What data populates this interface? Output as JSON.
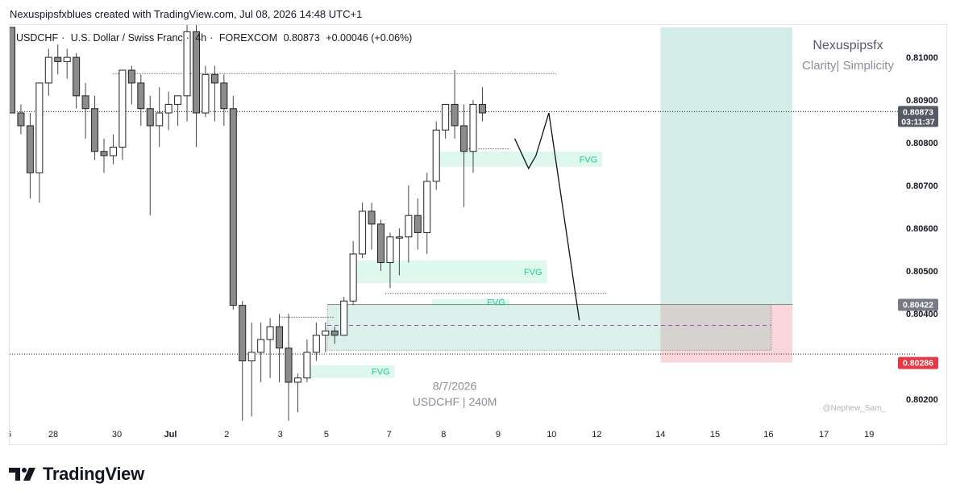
{
  "header": {
    "created_by": "Nexuspipsfxblues created with TradingView.com, Jul 08, 2026 14:48 UTC+1"
  },
  "symbol": {
    "ticker": "USDCHF",
    "name": "U.S. Dollar / Swiss Franc",
    "interval": "4h",
    "exchange": "FOREXCOM",
    "last": "0.80873",
    "change": "+0.00046 (+0.06%)"
  },
  "author": {
    "name": "Nexuspipsfx",
    "tagline": "Clarity| Simplicity"
  },
  "chart_data": {
    "type": "candlestick",
    "symbol": "USDCHF",
    "ylim": [
      0.8014,
      0.8107
    ],
    "yticks": [
      "0.81000",
      "0.80900",
      "0.80800",
      "0.80700",
      "0.80600",
      "0.80500",
      "0.80400",
      "0.80200"
    ],
    "xticks": [
      {
        "label": "6",
        "bar": -0.3
      },
      {
        "label": "28",
        "bar": 4.5
      },
      {
        "label": "30",
        "bar": 11.4
      },
      {
        "label": "Jul",
        "bar": 17.2
      },
      {
        "label": "2",
        "bar": 23.3
      },
      {
        "label": "3",
        "bar": 29.1
      },
      {
        "label": "5",
        "bar": 34.1
      },
      {
        "label": "7",
        "bar": 40.9
      },
      {
        "label": "8",
        "bar": 46.8
      },
      {
        "label": "9",
        "bar": 52.7
      },
      {
        "label": "10",
        "bar": 58.5
      },
      {
        "label": "12",
        "bar": 63.4
      },
      {
        "label": "14",
        "bar": 70.3
      },
      {
        "label": "15",
        "bar": 76.2
      },
      {
        "label": "16",
        "bar": 82.0
      },
      {
        "label": "17",
        "bar": 88.0
      },
      {
        "label": "19",
        "bar": 92.9
      }
    ],
    "candles": [
      [
        0.8107,
        0.8107,
        0.8087,
        0.8087
      ],
      [
        0.8087,
        0.8089,
        0.8082,
        0.8084
      ],
      [
        0.8084,
        0.8087,
        0.8067,
        0.8073
      ],
      [
        0.8073,
        0.8094,
        0.8066,
        0.8094
      ],
      [
        0.8094,
        0.8102,
        0.8091,
        0.81
      ],
      [
        0.81,
        0.8103,
        0.8096,
        0.8099
      ],
      [
        0.8099,
        0.8102,
        0.8095,
        0.81
      ],
      [
        0.81,
        0.8101,
        0.8088,
        0.8091
      ],
      [
        0.8091,
        0.8094,
        0.8081,
        0.8088
      ],
      [
        0.8088,
        0.8091,
        0.8076,
        0.8078
      ],
      [
        0.8078,
        0.8081,
        0.8073,
        0.8077
      ],
      [
        0.8077,
        0.8082,
        0.8075,
        0.8079
      ],
      [
        0.8079,
        0.8097,
        0.8076,
        0.8097
      ],
      [
        0.8097,
        0.8098,
        0.8089,
        0.8094
      ],
      [
        0.8094,
        0.8096,
        0.8084,
        0.8088
      ],
      [
        0.8088,
        0.8091,
        0.8063,
        0.8084
      ],
      [
        0.8084,
        0.8093,
        0.8079,
        0.8087
      ],
      [
        0.8087,
        0.8092,
        0.8083,
        0.8089
      ],
      [
        0.8089,
        0.8091,
        0.8084,
        0.8091
      ],
      [
        0.8091,
        0.8112,
        0.8085,
        0.8106
      ],
      [
        0.8106,
        0.811,
        0.8079,
        0.8087
      ],
      [
        0.8087,
        0.8098,
        0.8086,
        0.8096
      ],
      [
        0.8096,
        0.8098,
        0.8085,
        0.8094
      ],
      [
        0.8094,
        0.8096,
        0.8084,
        0.8088
      ],
      [
        0.8088,
        0.8091,
        0.8041,
        0.8042
      ],
      [
        0.8042,
        0.8043,
        0.8015,
        0.8029
      ],
      [
        0.8029,
        0.8038,
        0.8016,
        0.8031
      ],
      [
        0.8031,
        0.8038,
        0.8024,
        0.8034
      ],
      [
        0.8034,
        0.8039,
        0.8025,
        0.8037
      ],
      [
        0.8037,
        0.804,
        0.8024,
        0.8032
      ],
      [
        0.8032,
        0.804,
        0.8015,
        0.8024
      ],
      [
        0.8024,
        0.8026,
        0.8017,
        0.8025
      ],
      [
        0.8025,
        0.8034,
        0.8024,
        0.8031
      ],
      [
        0.8031,
        0.8038,
        0.8029,
        0.8035
      ],
      [
        0.8035,
        0.8038,
        0.8031,
        0.8036
      ],
      [
        0.8036,
        0.8037,
        0.8033,
        0.8035
      ],
      [
        0.8035,
        0.8044,
        0.8035,
        0.8043
      ],
      [
        0.8043,
        0.8057,
        0.8042,
        0.8054
      ],
      [
        0.8054,
        0.8066,
        0.8053,
        0.8064
      ],
      [
        0.8064,
        0.8066,
        0.8055,
        0.8061
      ],
      [
        0.8061,
        0.8062,
        0.805,
        0.8052
      ],
      [
        0.8052,
        0.8059,
        0.8046,
        0.8058
      ],
      [
        0.8058,
        0.806,
        0.8049,
        0.8058
      ],
      [
        0.8058,
        0.807,
        0.8052,
        0.8063
      ],
      [
        0.8063,
        0.8067,
        0.8055,
        0.8059
      ],
      [
        0.8059,
        0.8073,
        0.8054,
        0.8071
      ],
      [
        0.8071,
        0.8085,
        0.8069,
        0.8083
      ],
      [
        0.8083,
        0.8089,
        0.8081,
        0.8089
      ],
      [
        0.8089,
        0.8097,
        0.8081,
        0.8084
      ],
      [
        0.8084,
        0.8089,
        0.8065,
        0.8078
      ],
      [
        0.8078,
        0.809,
        0.8073,
        0.8089
      ],
      [
        0.8089,
        0.8093,
        0.8085,
        0.8087
      ]
    ],
    "fvg_zones": [
      {
        "label": "FVG",
        "bar_from": 46.0,
        "bar_to": 64.0,
        "top": 0.8078,
        "bottom": 0.80744
      },
      {
        "label": "FVG",
        "bar_from": 37.0,
        "bar_to": 58.0,
        "top": 0.80525,
        "bottom": 0.80472
      },
      {
        "label": "FVG",
        "bar_from": 45.5,
        "bar_to": 54.0,
        "top": 0.80435,
        "bottom": 0.80424
      },
      {
        "label": "FVG",
        "bar_from": 32.0,
        "bar_to": 41.5,
        "top": 0.8028,
        "bottom": 0.8025
      }
    ],
    "position": {
      "bar_from": 70.3,
      "bar_to": 84.6,
      "target": 0.8107,
      "entry": 0.80422,
      "stop": 0.80286,
      "entry_label": "0.80422",
      "stop_label": "0.80286"
    },
    "demand_zone": {
      "bar_from": 34.2,
      "bar_to": 82.3,
      "top": 0.80422,
      "bottom": 0.80315,
      "mid": 0.80373
    },
    "projection": [
      [
        54.5,
        0.8081
      ],
      [
        56.0,
        0.8074
      ],
      [
        56.8,
        0.8077
      ],
      [
        58.2,
        0.8087
      ],
      [
        61.5,
        0.80385
      ]
    ],
    "levels": [
      {
        "price": 0.80962,
        "bar_from": 11.0,
        "bar_to": 59.0,
        "style": "dotted"
      },
      {
        "price": 0.80873,
        "bar_from": -1.0,
        "bar_to": 98.0,
        "style": "dotted"
      },
      {
        "price": 0.80786,
        "bar_from": 49.0,
        "bar_to": 54.0,
        "style": "dotted"
      },
      {
        "price": 0.80448,
        "bar_from": 40.5,
        "bar_to": 64.5,
        "style": "dotted"
      },
      {
        "price": 0.80306,
        "bar_from": -1.0,
        "bar_to": 98.0,
        "style": "dotted"
      },
      {
        "price": 0.80392,
        "bar_from": 29.0,
        "bar_to": 35.0,
        "style": "dotted"
      }
    ],
    "price_label": {
      "value": "0.80873",
      "countdown": "03:11:37"
    },
    "annotations": [
      {
        "text": "8/7/2026",
        "bar": 48.0,
        "price": 0.80222
      },
      {
        "text": "USDCHF | 240M",
        "bar": 48.0,
        "price": 0.80185
      }
    ],
    "watermark": "@Nephew_Sam_"
  },
  "branding": {
    "logo_text": "TradingView"
  },
  "colors": {
    "fvg": "#1fcf8a",
    "target_zone": "#d3ece7",
    "stop_zone": "#f9d6d9",
    "stop_label": "#e53945",
    "entry_label": "#787b86",
    "price_label": "#555a64"
  }
}
